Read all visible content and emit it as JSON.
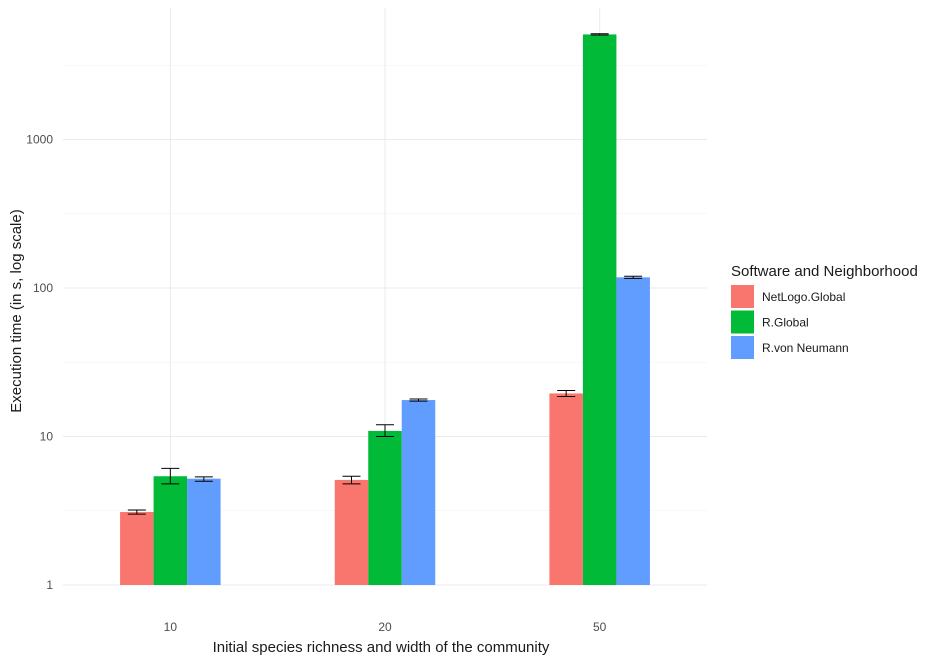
{
  "chart_data": {
    "type": "bar",
    "categories": [
      "10",
      "20",
      "50"
    ],
    "series": [
      {
        "name": "NetLogo.Global",
        "color": "#F8766D",
        "values": [
          3.1,
          5.1,
          19.5
        ],
        "error_low": [
          3.0,
          4.8,
          18.6
        ],
        "error_high": [
          3.2,
          5.4,
          20.4
        ]
      },
      {
        "name": "R.Global",
        "color": "#00BA38",
        "values": [
          5.4,
          10.9,
          5100
        ],
        "error_low": [
          4.8,
          10.0,
          5050
        ],
        "error_high": [
          6.1,
          12.0,
          5150
        ]
      },
      {
        "name": "R.von Neumann",
        "color": "#619CFF",
        "values": [
          5.2,
          17.6,
          118
        ],
        "error_low": [
          5.0,
          17.3,
          116
        ],
        "error_high": [
          5.35,
          17.9,
          120
        ]
      }
    ],
    "xlabel": "Initial species richness and width of the community",
    "ylabel": "Execution time (in s, log scale)",
    "yscale": "log10",
    "ylim": [
      1,
      5100
    ],
    "yticks": [
      1,
      10,
      100,
      1000
    ],
    "ytick_labels": [
      "1",
      "10",
      "100",
      "1000"
    ],
    "grid": true,
    "legend": {
      "title": "Software and Neighborhood",
      "position": "right"
    }
  }
}
